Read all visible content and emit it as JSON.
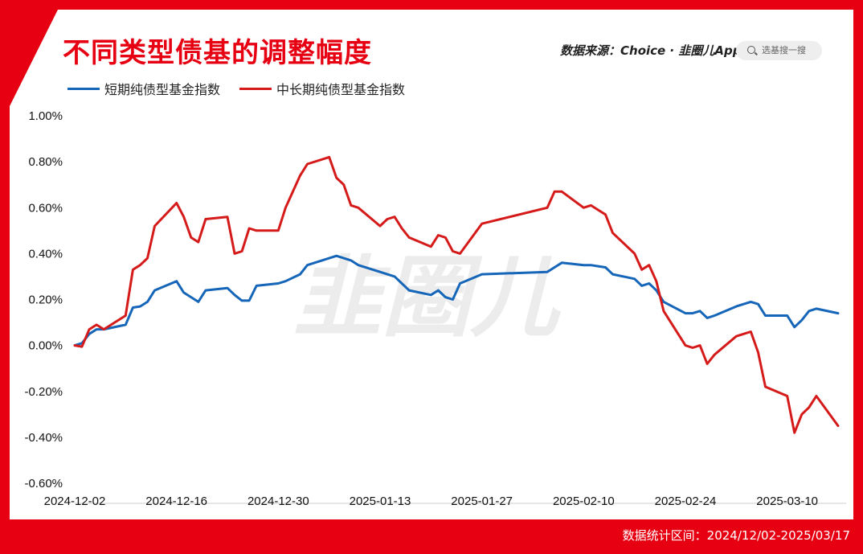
{
  "header": {
    "title": "不同类型债基的调整幅度",
    "source": "数据来源：Choice · 韭圈儿App",
    "search_placeholder": "选基搜一搜"
  },
  "watermark": "韭圈儿",
  "footer": {
    "range_text": "数据统计区间：2024/12/02-2025/03/17"
  },
  "colors": {
    "frame": "#e60012",
    "short_series": "#1565b8",
    "long_series": "#d51a1a"
  },
  "chart_data": {
    "type": "line",
    "title": "不同类型债基的调整幅度",
    "xlabel": "",
    "ylabel": "",
    "ylim": [
      -0.6,
      1.0
    ],
    "y_ticks": [
      "1.00%",
      "0.80%",
      "0.60%",
      "0.40%",
      "0.20%",
      "0.00%",
      "-0.20%",
      "-0.40%",
      "-0.60%"
    ],
    "x_ticks": [
      "2024-12-02",
      "2024-12-16",
      "2024-12-30",
      "2025-01-13",
      "2025-01-27",
      "2025-02-10",
      "2025-02-24",
      "2025-03-10"
    ],
    "legend_position": "top-left",
    "grid": false,
    "series": [
      {
        "name": "短期纯债型基金指数",
        "color": "#1565b8",
        "x": [
          "2024-12-02",
          "2024-12-03",
          "2024-12-04",
          "2024-12-05",
          "2024-12-06",
          "2024-12-09",
          "2024-12-10",
          "2024-12-11",
          "2024-12-12",
          "2024-12-13",
          "2024-12-16",
          "2024-12-17",
          "2024-12-18",
          "2024-12-19",
          "2024-12-20",
          "2024-12-23",
          "2024-12-24",
          "2024-12-25",
          "2024-12-26",
          "2024-12-27",
          "2024-12-30",
          "2024-12-31",
          "2025-01-02",
          "2025-01-03",
          "2025-01-06",
          "2025-01-07",
          "2025-01-08",
          "2025-01-09",
          "2025-01-10",
          "2025-01-13",
          "2025-01-14",
          "2025-01-15",
          "2025-01-16",
          "2025-01-17",
          "2025-01-20",
          "2025-01-21",
          "2025-01-22",
          "2025-01-23",
          "2025-01-24",
          "2025-01-27",
          "2025-02-05",
          "2025-02-06",
          "2025-02-07",
          "2025-02-10",
          "2025-02-11",
          "2025-02-12",
          "2025-02-13",
          "2025-02-14",
          "2025-02-17",
          "2025-02-18",
          "2025-02-19",
          "2025-02-20",
          "2025-02-21",
          "2025-02-24",
          "2025-02-25",
          "2025-02-26",
          "2025-02-27",
          "2025-02-28",
          "2025-03-03",
          "2025-03-04",
          "2025-03-05",
          "2025-03-06",
          "2025-03-07",
          "2025-03-10",
          "2025-03-11",
          "2025-03-12",
          "2025-03-13",
          "2025-03-14",
          "2025-03-17"
        ],
        "values": [
          0.0,
          0.01,
          0.05,
          0.07,
          0.07,
          0.09,
          0.165,
          0.17,
          0.19,
          0.24,
          0.28,
          0.23,
          0.21,
          0.19,
          0.24,
          0.25,
          0.22,
          0.195,
          0.195,
          0.26,
          0.27,
          0.28,
          0.31,
          0.35,
          0.38,
          0.39,
          0.38,
          0.37,
          0.35,
          0.32,
          0.31,
          0.3,
          0.27,
          0.24,
          0.22,
          0.24,
          0.21,
          0.2,
          0.27,
          0.31,
          0.32,
          0.34,
          0.36,
          0.35,
          0.35,
          0.345,
          0.34,
          0.31,
          0.29,
          0.26,
          0.27,
          0.24,
          0.19,
          0.14,
          0.14,
          0.15,
          0.12,
          0.13,
          0.17,
          0.18,
          0.19,
          0.18,
          0.13,
          0.13,
          0.08,
          0.11,
          0.15,
          0.16,
          0.14
        ]
      },
      {
        "name": "中长期纯债型基金指数",
        "color": "#d51a1a",
        "x": [
          "2024-12-02",
          "2024-12-03",
          "2024-12-04",
          "2024-12-05",
          "2024-12-06",
          "2024-12-09",
          "2024-12-10",
          "2024-12-11",
          "2024-12-12",
          "2024-12-13",
          "2024-12-16",
          "2024-12-17",
          "2024-12-18",
          "2024-12-19",
          "2024-12-20",
          "2024-12-23",
          "2024-12-24",
          "2024-12-25",
          "2024-12-26",
          "2024-12-27",
          "2024-12-30",
          "2024-12-31",
          "2025-01-02",
          "2025-01-03",
          "2025-01-06",
          "2025-01-07",
          "2025-01-08",
          "2025-01-09",
          "2025-01-10",
          "2025-01-13",
          "2025-01-14",
          "2025-01-15",
          "2025-01-16",
          "2025-01-17",
          "2025-01-20",
          "2025-01-21",
          "2025-01-22",
          "2025-01-23",
          "2025-01-24",
          "2025-01-27",
          "2025-02-05",
          "2025-02-06",
          "2025-02-07",
          "2025-02-10",
          "2025-02-11",
          "2025-02-12",
          "2025-02-13",
          "2025-02-14",
          "2025-02-17",
          "2025-02-18",
          "2025-02-19",
          "2025-02-20",
          "2025-02-21",
          "2025-02-24",
          "2025-02-25",
          "2025-02-26",
          "2025-02-27",
          "2025-02-28",
          "2025-03-03",
          "2025-03-04",
          "2025-03-05",
          "2025-03-06",
          "2025-03-07",
          "2025-03-10",
          "2025-03-11",
          "2025-03-12",
          "2025-03-13",
          "2025-03-14",
          "2025-03-17"
        ],
        "values": [
          0.0,
          -0.005,
          0.07,
          0.09,
          0.07,
          0.13,
          0.33,
          0.35,
          0.38,
          0.52,
          0.62,
          0.56,
          0.47,
          0.45,
          0.55,
          0.56,
          0.4,
          0.41,
          0.51,
          0.5,
          0.5,
          0.6,
          0.74,
          0.79,
          0.82,
          0.73,
          0.7,
          0.61,
          0.6,
          0.52,
          0.55,
          0.56,
          0.51,
          0.47,
          0.43,
          0.48,
          0.47,
          0.41,
          0.4,
          0.53,
          0.6,
          0.67,
          0.67,
          0.6,
          0.61,
          0.59,
          0.57,
          0.49,
          0.4,
          0.33,
          0.35,
          0.28,
          0.15,
          0.0,
          -0.01,
          0.0,
          -0.08,
          -0.04,
          0.04,
          0.05,
          0.06,
          -0.03,
          -0.18,
          -0.22,
          -0.38,
          -0.3,
          -0.27,
          -0.22,
          -0.35
        ]
      }
    ]
  }
}
